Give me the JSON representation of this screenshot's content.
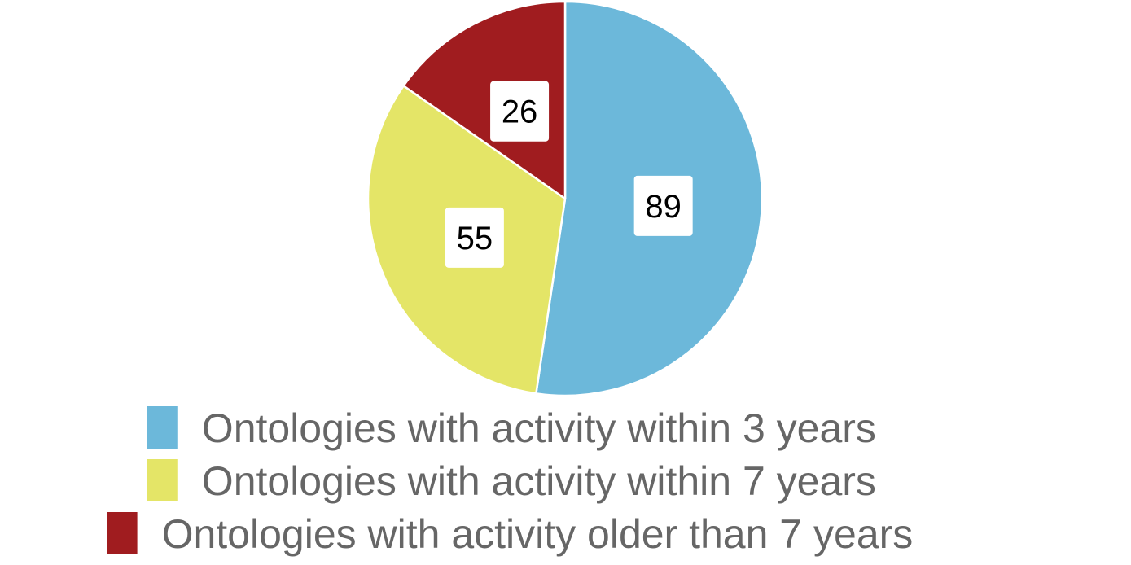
{
  "chart_data": {
    "type": "pie",
    "title": "",
    "slices": [
      {
        "label": "Ontologies with activity within 3 years",
        "value": 89,
        "color": "#6cb8da"
      },
      {
        "label": "Ontologies with activity within 7 years",
        "value": 55,
        "color": "#e4e567"
      },
      {
        "label": "Ontologies with activity older than 7 years",
        "value": 26,
        "color": "#a01c1f"
      }
    ],
    "start_angle": "12 o'clock",
    "direction": "clockwise",
    "data_labels": true,
    "legend_position": "bottom"
  }
}
